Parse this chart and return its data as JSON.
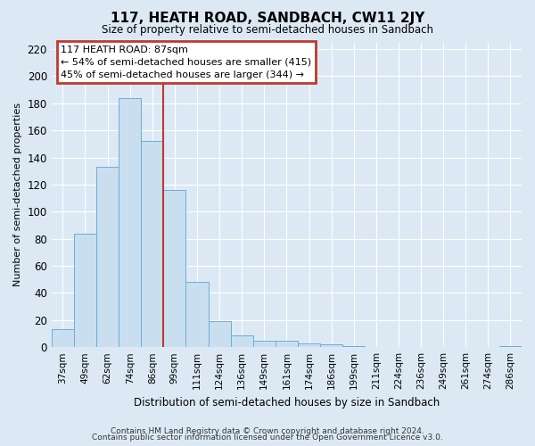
{
  "title": "117, HEATH ROAD, SANDBACH, CW11 2JY",
  "subtitle": "Size of property relative to semi-detached houses in Sandbach",
  "xlabel": "Distribution of semi-detached houses by size in Sandbach",
  "ylabel": "Number of semi-detached properties",
  "categories": [
    "37sqm",
    "49sqm",
    "62sqm",
    "74sqm",
    "86sqm",
    "99sqm",
    "111sqm",
    "124sqm",
    "136sqm",
    "149sqm",
    "161sqm",
    "174sqm",
    "186sqm",
    "199sqm",
    "211sqm",
    "224sqm",
    "236sqm",
    "249sqm",
    "261sqm",
    "274sqm",
    "286sqm"
  ],
  "values": [
    13,
    84,
    133,
    184,
    152,
    116,
    48,
    19,
    9,
    5,
    5,
    3,
    2,
    1,
    0,
    0,
    0,
    0,
    0,
    0,
    1
  ],
  "bar_color": "#c9dff0",
  "bar_edge_color": "#6aaed6",
  "property_line_color": "#c0392b",
  "property_line_idx": 4,
  "ylim": [
    0,
    225
  ],
  "yticks": [
    0,
    20,
    40,
    60,
    80,
    100,
    120,
    140,
    160,
    180,
    200,
    220
  ],
  "annotation_title": "117 HEATH ROAD: 87sqm",
  "annotation_line1": "← 54% of semi-detached houses are smaller (415)",
  "annotation_line2": "45% of semi-detached houses are larger (344) →",
  "annotation_box_color": "#c0392b",
  "footer_line1": "Contains HM Land Registry data © Crown copyright and database right 2024.",
  "footer_line2": "Contains public sector information licensed under the Open Government Licence v3.0.",
  "plot_bg_color": "#dce9f5",
  "fig_bg_color": "#dce9f5",
  "grid_color": "#ffffff"
}
